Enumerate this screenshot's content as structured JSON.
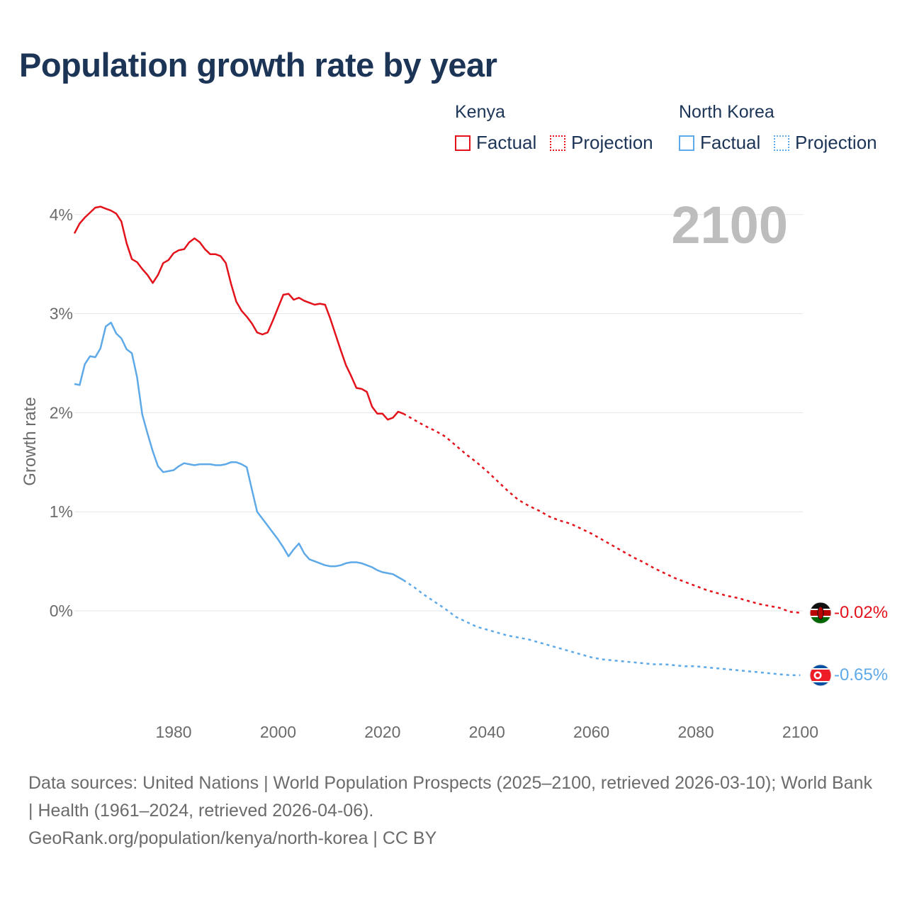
{
  "title": "Population growth rate by year",
  "legend": {
    "groups": [
      {
        "country": "Kenya",
        "factual_label": "Factual",
        "projection_label": "Projection",
        "color": "#e3121b"
      },
      {
        "country": "North Korea",
        "factual_label": "Factual",
        "projection_label": "Projection",
        "color": "#5ea9e8"
      }
    ]
  },
  "year_display": "2100",
  "footer": {
    "sources": "Data sources: United Nations | World Population Prospects (2025–2100, retrieved 2026-03-10); World Bank | Health (1961–2024, retrieved 2026-04-06).",
    "credit": "GeoRank.org/population/kenya/north-korea | CC BY"
  },
  "chart_data": {
    "type": "line",
    "title": "Population growth rate by year",
    "xlabel": "",
    "ylabel": "Growth rate",
    "xlim": [
      1961,
      2100
    ],
    "ylim": [
      -1.0,
      4.4
    ],
    "x_ticks": [
      1980,
      2000,
      2020,
      2040,
      2060,
      2080,
      2100
    ],
    "x_tick_labels": [
      "1980",
      "2000",
      "2020",
      "2040",
      "2060",
      "2080",
      "2100"
    ],
    "y_ticks": [
      0,
      1,
      2,
      3,
      4
    ],
    "y_tick_labels": [
      "0%",
      "1%",
      "2%",
      "3%",
      "4%"
    ],
    "grid": true,
    "series": [
      {
        "name": "Kenya",
        "color": "#e3121b",
        "end_label": "-0.02%",
        "flag": "kenya-flag",
        "factual": {
          "x": [
            1961,
            1962,
            1963,
            1964,
            1965,
            1966,
            1967,
            1968,
            1969,
            1970,
            1971,
            1972,
            1973,
            1974,
            1975,
            1976,
            1977,
            1978,
            1979,
            1980,
            1981,
            1982,
            1983,
            1984,
            1985,
            1986,
            1987,
            1988,
            1989,
            1990,
            1991,
            1992,
            1993,
            1994,
            1995,
            1996,
            1997,
            1998,
            1999,
            2000,
            2001,
            2002,
            2003,
            2004,
            2005,
            2006,
            2007,
            2008,
            2009,
            2010,
            2011,
            2012,
            2013,
            2014,
            2015,
            2016,
            2017,
            2018,
            2019,
            2020,
            2021,
            2022,
            2023,
            2024
          ],
          "y": [
            3.81,
            3.91,
            3.97,
            4.02,
            4.07,
            4.08,
            4.06,
            4.04,
            4.01,
            3.93,
            3.71,
            3.55,
            3.52,
            3.45,
            3.39,
            3.31,
            3.39,
            3.51,
            3.54,
            3.61,
            3.64,
            3.65,
            3.72,
            3.76,
            3.72,
            3.65,
            3.6,
            3.6,
            3.58,
            3.51,
            3.3,
            3.12,
            3.03,
            2.97,
            2.9,
            2.81,
            2.79,
            2.81,
            2.93,
            3.06,
            3.19,
            3.2,
            3.14,
            3.16,
            3.13,
            3.11,
            3.09,
            3.1,
            3.09,
            2.95,
            2.79,
            2.63,
            2.48,
            2.37,
            2.25,
            2.24,
            2.21,
            2.06,
            1.99,
            1.99,
            1.93,
            1.95,
            2.01,
            1.99
          ]
        },
        "projection": {
          "x": [
            2024,
            2026,
            2028,
            2030,
            2032,
            2034,
            2036,
            2038,
            2040,
            2042,
            2044,
            2046,
            2048,
            2050,
            2052,
            2054,
            2056,
            2058,
            2060,
            2062,
            2064,
            2066,
            2068,
            2070,
            2072,
            2074,
            2076,
            2078,
            2080,
            2082,
            2084,
            2086,
            2088,
            2090,
            2092,
            2094,
            2096,
            2098,
            2100
          ],
          "y": [
            1.99,
            1.93,
            1.87,
            1.82,
            1.76,
            1.67,
            1.58,
            1.5,
            1.41,
            1.31,
            1.21,
            1.12,
            1.06,
            1.01,
            0.95,
            0.91,
            0.88,
            0.83,
            0.78,
            0.72,
            0.66,
            0.6,
            0.54,
            0.49,
            0.43,
            0.38,
            0.33,
            0.29,
            0.25,
            0.21,
            0.18,
            0.15,
            0.13,
            0.1,
            0.07,
            0.05,
            0.03,
            -0.01,
            -0.02
          ]
        }
      },
      {
        "name": "North Korea",
        "color": "#5ea9e8",
        "end_label": "-0.65%",
        "flag": "north-korea-flag",
        "factual": {
          "x": [
            1961,
            1962,
            1963,
            1964,
            1965,
            1966,
            1967,
            1968,
            1969,
            1970,
            1971,
            1972,
            1973,
            1974,
            1975,
            1976,
            1977,
            1978,
            1979,
            1980,
            1981,
            1982,
            1983,
            1984,
            1985,
            1986,
            1987,
            1988,
            1989,
            1990,
            1991,
            1992,
            1993,
            1994,
            1995,
            1996,
            1997,
            1998,
            1999,
            2000,
            2001,
            2002,
            2003,
            2004,
            2005,
            2006,
            2007,
            2008,
            2009,
            2010,
            2011,
            2012,
            2013,
            2014,
            2015,
            2016,
            2017,
            2018,
            2019,
            2020,
            2021,
            2022,
            2023,
            2024
          ],
          "y": [
            2.29,
            2.28,
            2.49,
            2.57,
            2.56,
            2.65,
            2.87,
            2.91,
            2.8,
            2.75,
            2.64,
            2.6,
            2.36,
            1.98,
            1.79,
            1.61,
            1.46,
            1.4,
            1.41,
            1.42,
            1.46,
            1.49,
            1.48,
            1.47,
            1.48,
            1.48,
            1.48,
            1.47,
            1.47,
            1.48,
            1.5,
            1.5,
            1.48,
            1.45,
            1.22,
            1.0,
            0.93,
            0.86,
            0.79,
            0.72,
            0.64,
            0.55,
            0.62,
            0.68,
            0.58,
            0.52,
            0.5,
            0.48,
            0.46,
            0.45,
            0.45,
            0.46,
            0.48,
            0.49,
            0.49,
            0.48,
            0.46,
            0.44,
            0.41,
            0.39,
            0.38,
            0.37,
            0.34,
            0.31
          ]
        },
        "projection": {
          "x": [
            2024,
            2026,
            2028,
            2030,
            2032,
            2034,
            2036,
            2038,
            2040,
            2042,
            2044,
            2046,
            2048,
            2050,
            2052,
            2054,
            2056,
            2058,
            2060,
            2062,
            2064,
            2066,
            2068,
            2070,
            2072,
            2074,
            2076,
            2078,
            2080,
            2082,
            2084,
            2086,
            2088,
            2090,
            2092,
            2094,
            2096,
            2098,
            2100
          ],
          "y": [
            0.31,
            0.24,
            0.16,
            0.09,
            0.02,
            -0.06,
            -0.11,
            -0.16,
            -0.19,
            -0.22,
            -0.25,
            -0.27,
            -0.29,
            -0.32,
            -0.35,
            -0.38,
            -0.41,
            -0.44,
            -0.47,
            -0.49,
            -0.5,
            -0.51,
            -0.52,
            -0.53,
            -0.54,
            -0.54,
            -0.55,
            -0.56,
            -0.56,
            -0.57,
            -0.58,
            -0.59,
            -0.6,
            -0.61,
            -0.62,
            -0.63,
            -0.64,
            -0.65,
            -0.65
          ]
        }
      }
    ]
  }
}
